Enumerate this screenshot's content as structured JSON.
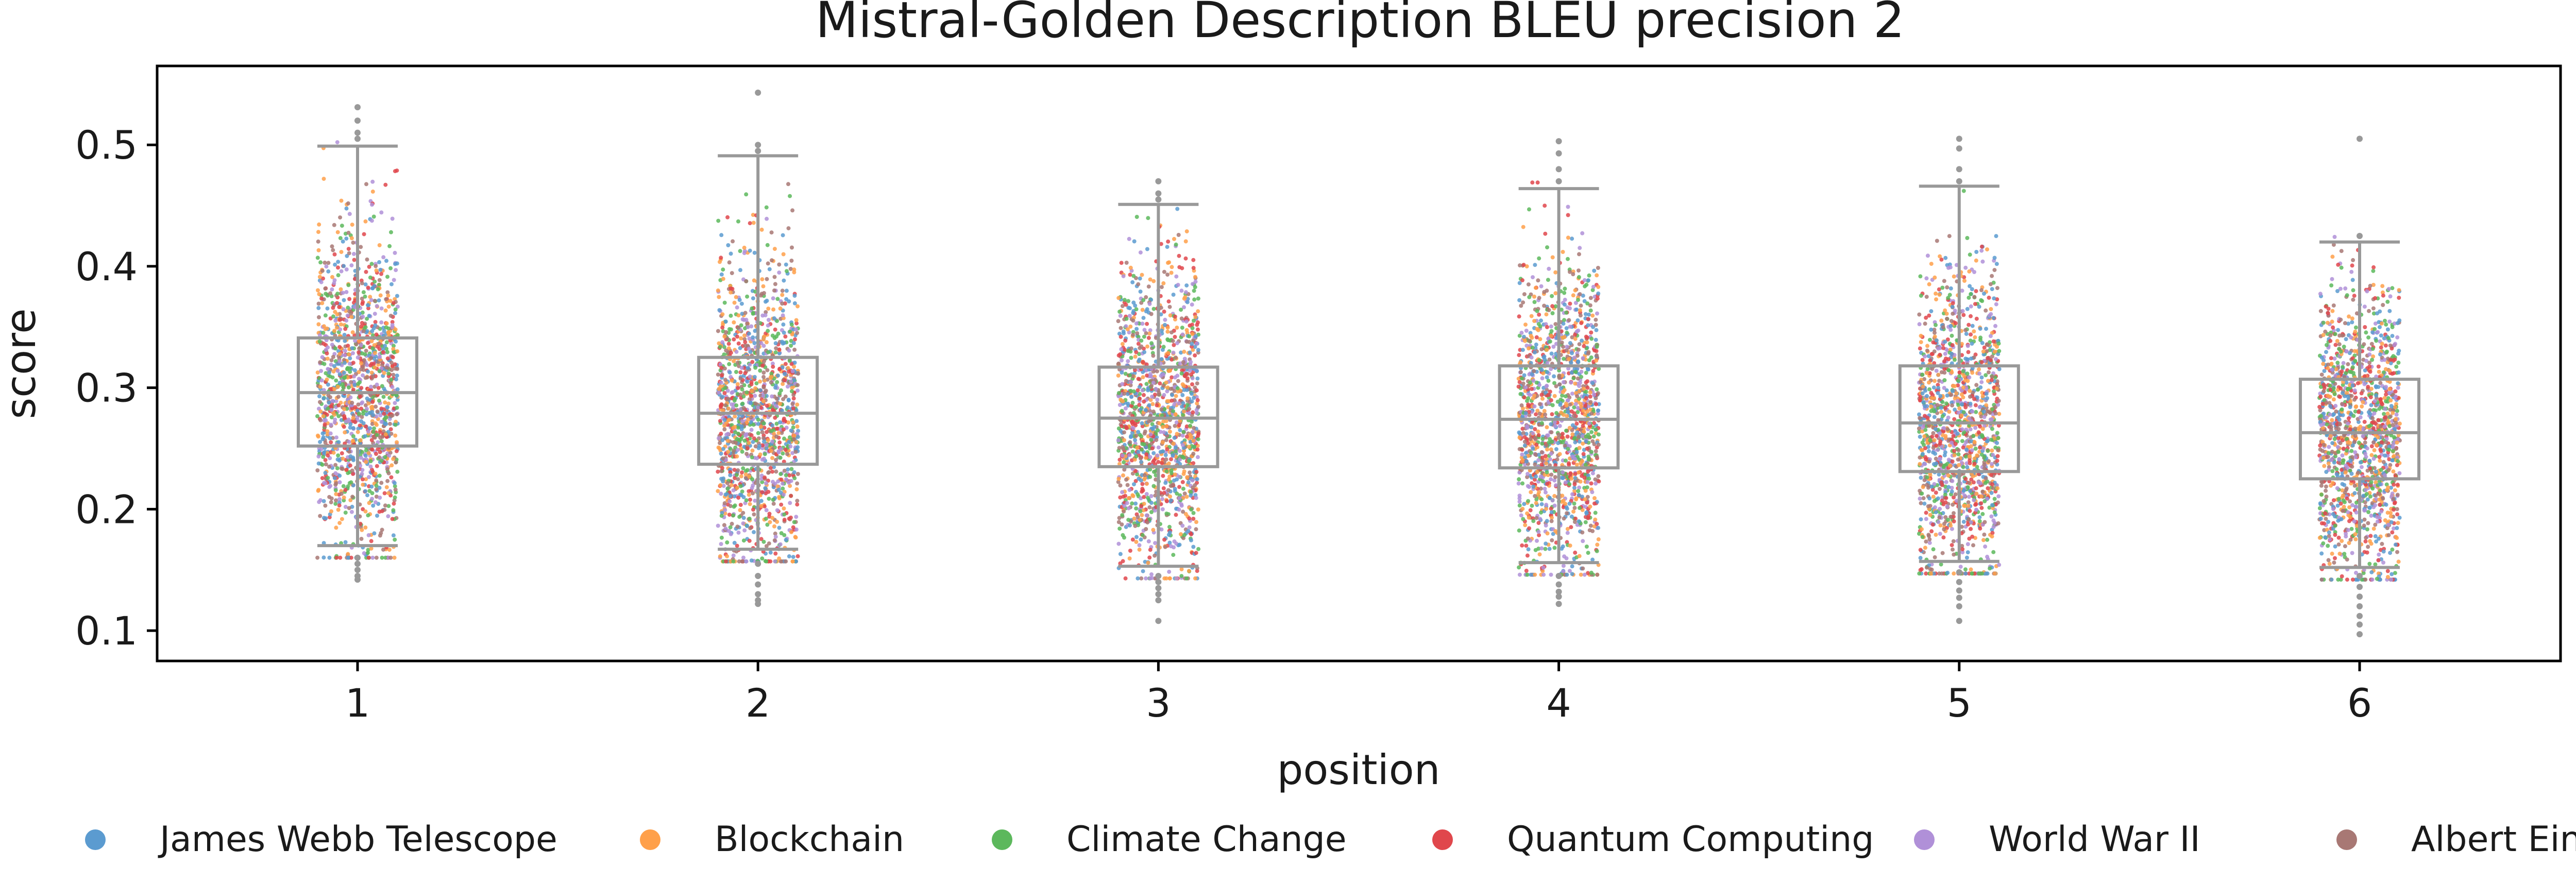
{
  "chart_data": {
    "type": "box+strip",
    "title": "Mistral-Golden Description BLEU precision 2",
    "xlabel": "position",
    "ylabel": "score",
    "categories": [
      "1",
      "2",
      "3",
      "4",
      "5",
      "6"
    ],
    "ylim": [
      0.075,
      0.565
    ],
    "yticks": [
      0.1,
      0.2,
      0.3,
      0.4,
      0.5
    ],
    "ytick_labels": [
      "0.1",
      "0.2",
      "0.3",
      "0.4",
      "0.5"
    ],
    "grid": false,
    "legend_position": "bottom",
    "box_color": "#999999",
    "boxes": [
      {
        "category": "1",
        "q1": 0.252,
        "median": 0.296,
        "q3": 0.341,
        "whisker_low": 0.17,
        "whisker_high": 0.499,
        "outliers": [
          0.142,
          0.145,
          0.15,
          0.155,
          0.16,
          0.505,
          0.51,
          0.52,
          0.531
        ]
      },
      {
        "category": "2",
        "q1": 0.237,
        "median": 0.279,
        "q3": 0.325,
        "whisker_low": 0.167,
        "whisker_high": 0.491,
        "outliers": [
          0.122,
          0.125,
          0.13,
          0.138,
          0.145,
          0.155,
          0.495,
          0.5,
          0.543
        ]
      },
      {
        "category": "3",
        "q1": 0.235,
        "median": 0.275,
        "q3": 0.317,
        "whisker_low": 0.153,
        "whisker_high": 0.451,
        "outliers": [
          0.108,
          0.125,
          0.13,
          0.135,
          0.14,
          0.145,
          0.455,
          0.46,
          0.47
        ]
      },
      {
        "category": "4",
        "q1": 0.234,
        "median": 0.274,
        "q3": 0.318,
        "whisker_low": 0.156,
        "whisker_high": 0.464,
        "outliers": [
          0.122,
          0.128,
          0.132,
          0.138,
          0.145,
          0.47,
          0.48,
          0.493,
          0.503
        ]
      },
      {
        "category": "5",
        "q1": 0.231,
        "median": 0.271,
        "q3": 0.318,
        "whisker_low": 0.157,
        "whisker_high": 0.466,
        "outliers": [
          0.108,
          0.12,
          0.127,
          0.133,
          0.14,
          0.148,
          0.47,
          0.48,
          0.497,
          0.505
        ]
      },
      {
        "category": "6",
        "q1": 0.225,
        "median": 0.263,
        "q3": 0.307,
        "whisker_low": 0.152,
        "whisker_high": 0.42,
        "outliers": [
          0.097,
          0.105,
          0.112,
          0.12,
          0.128,
          0.136,
          0.145,
          0.425,
          0.505
        ]
      }
    ],
    "series": [
      {
        "name": "James Webb Telescope",
        "color": "#5b9bd0"
      },
      {
        "name": "Blockchain",
        "color": "#ffa04a"
      },
      {
        "name": "Climate Change",
        "color": "#5cb85c"
      },
      {
        "name": "Quantum Computing",
        "color": "#e0474c"
      },
      {
        "name": "World War II",
        "color": "#b090d8"
      },
      {
        "name": "Albert Einstein",
        "color": "#a87874"
      }
    ]
  }
}
